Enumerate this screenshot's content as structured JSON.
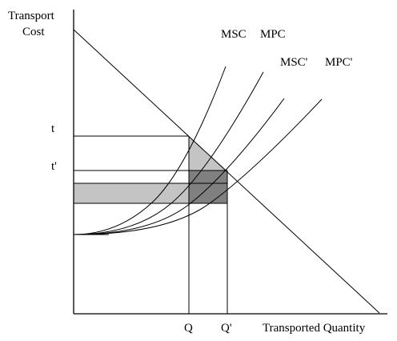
{
  "chart_data": {
    "type": "line",
    "xlabel": "Transported Quantity",
    "ylabel_lines": [
      "Transport",
      "Cost"
    ],
    "x_ticks": [
      "Q",
      "Q'"
    ],
    "y_ticks": [
      "t",
      "t'"
    ],
    "curve_labels": [
      "MSC",
      "MPC",
      "MSC'",
      "MPC'"
    ],
    "series": [
      {
        "name": "MSC"
      },
      {
        "name": "MPC"
      },
      {
        "name": "MSC'"
      },
      {
        "name": "MPC'"
      }
    ],
    "colors": {
      "light_shading": "#c4c4c4",
      "dark_shading": "#808080",
      "lines": "#000000"
    }
  }
}
